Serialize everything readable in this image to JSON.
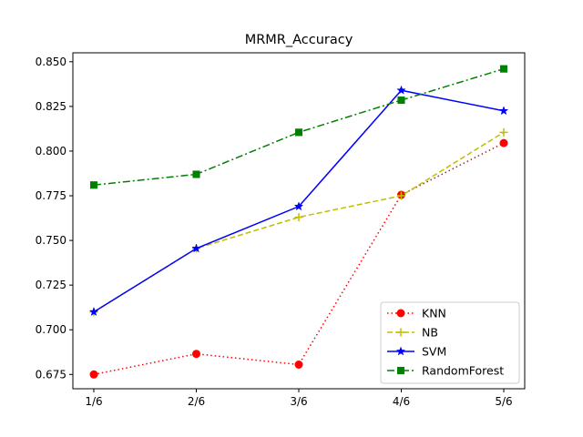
{
  "chart_data": {
    "type": "line",
    "title": "MRMR_Accuracy",
    "xlabel": "",
    "ylabel": "",
    "categories": [
      "1/6",
      "2/6",
      "3/6",
      "4/6",
      "5/6"
    ],
    "ylim": [
      0.667,
      0.855
    ],
    "yticks": [
      0.675,
      0.7,
      0.725,
      0.75,
      0.775,
      0.8,
      0.825,
      0.85
    ],
    "ytick_labels": [
      "0.675",
      "0.700",
      "0.725",
      "0.750",
      "0.775",
      "0.800",
      "0.825",
      "0.850"
    ],
    "grid": false,
    "legend_position": "lower-right",
    "series": [
      {
        "name": "KNN",
        "values": [
          0.675,
          0.6865,
          0.6805,
          0.7755,
          0.8045
        ],
        "color": "#ff0000",
        "linestyle": "dotted",
        "marker": "circle"
      },
      {
        "name": "NB",
        "values": [
          0.71,
          0.7455,
          0.763,
          0.775,
          0.8105
        ],
        "color": "#bfbf00",
        "linestyle": "dashed",
        "marker": "plus"
      },
      {
        "name": "SVM",
        "values": [
          0.71,
          0.7455,
          0.769,
          0.834,
          0.8225
        ],
        "color": "#0000ff",
        "linestyle": "solid",
        "marker": "star"
      },
      {
        "name": "RandomForest",
        "values": [
          0.781,
          0.787,
          0.8105,
          0.8285,
          0.846
        ],
        "color": "#008000",
        "linestyle": "dashdot",
        "marker": "square"
      }
    ]
  }
}
